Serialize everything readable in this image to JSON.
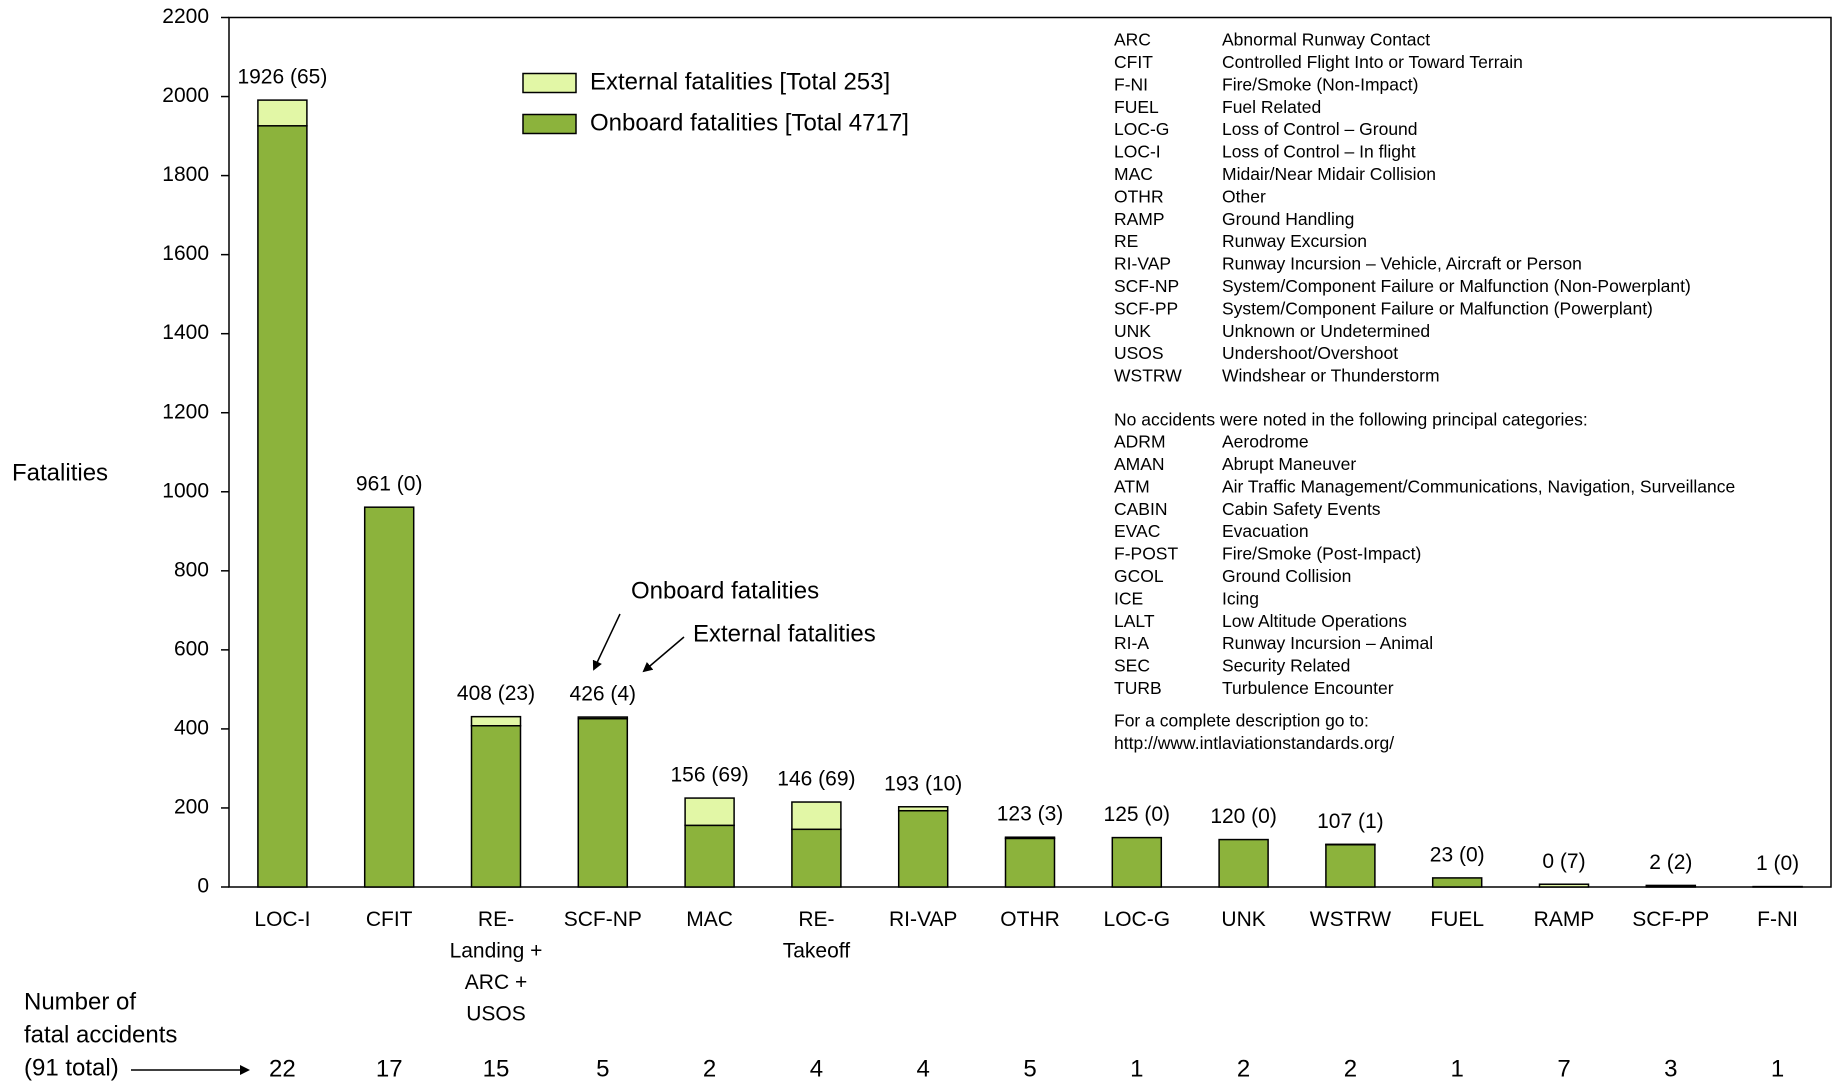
{
  "chart_data": {
    "type": "bar",
    "stacked": true,
    "ylabel": "Fatalities",
    "categories": [
      "LOC-I",
      "CFIT",
      "RE-\nLanding +\nARC +\nUSOS",
      "SCF-NP",
      "MAC",
      "RE-\nTakeoff",
      "RI-VAP",
      "OTHR",
      "LOC-G",
      "UNK",
      "WSTRW",
      "FUEL",
      "RAMP",
      "SCF-PP",
      "F-NI"
    ],
    "series": [
      {
        "name": "Onboard fatalities [Total 4717]",
        "color": "#8cb33c",
        "values": [
          1926,
          961,
          408,
          426,
          156,
          146,
          193,
          123,
          125,
          120,
          107,
          23,
          0,
          2,
          1
        ],
        "value_labels": [
          "1926 (65)",
          "961 (0)",
          "408 (23)",
          "426 (4)",
          "156 (69)",
          "146 (69)",
          "193 (10)",
          "123 (3)",
          "125 (0)",
          "120 (0)",
          "107 (1)",
          "23 (0)",
          "0 (7)",
          "2 (2)",
          "1 (0)"
        ]
      },
      {
        "name": "External fatalities [Total 253]",
        "color": "#e2f7a6",
        "values": [
          65,
          0,
          23,
          4,
          69,
          69,
          10,
          3,
          0,
          0,
          1,
          0,
          7,
          2,
          0
        ]
      }
    ],
    "ylim": [
      0,
      2200
    ],
    "yticks": [
      0,
      200,
      400,
      600,
      800,
      1000,
      1200,
      1400,
      1600,
      1800,
      2000,
      2200
    ],
    "grid": false,
    "annotations": [
      "Onboard fatalities",
      "External fatalities"
    ],
    "accidents": {
      "label": [
        "Number of",
        "fatal accidents",
        "(91 total)"
      ],
      "values": [
        22,
        17,
        15,
        5,
        2,
        4,
        4,
        5,
        1,
        2,
        2,
        1,
        7,
        3,
        1
      ]
    },
    "abbreviations": [
      [
        "ARC",
        "Abnormal Runway Contact"
      ],
      [
        "CFIT",
        "Controlled Flight Into or Toward Terrain"
      ],
      [
        "F-NI",
        "Fire/Smoke (Non-Impact)"
      ],
      [
        "FUEL",
        "Fuel Related"
      ],
      [
        "LOC-G",
        "Loss of Control – Ground"
      ],
      [
        "LOC-I",
        "Loss of Control – In flight"
      ],
      [
        "MAC",
        "Midair/Near Midair Collision"
      ],
      [
        "OTHR",
        "Other"
      ],
      [
        "RAMP",
        "Ground Handling"
      ],
      [
        "RE",
        "Runway Excursion"
      ],
      [
        "RI-VAP",
        "Runway Incursion – Vehicle, Aircraft or Person"
      ],
      [
        "SCF-NP",
        "System/Component Failure or  Malfunction (Non-Powerplant)"
      ],
      [
        "SCF-PP",
        "System/Component Failure or Malfunction  (Powerplant)"
      ],
      [
        "UNK",
        "Unknown or Undetermined"
      ],
      [
        "USOS",
        "Undershoot/Overshoot"
      ],
      [
        "WSTRW",
        "Windshear or Thunderstorm"
      ]
    ],
    "no_accidents_heading": "No accidents were noted in the following principal categories:",
    "no_accidents": [
      [
        "ADRM",
        "Aerodrome"
      ],
      [
        "AMAN",
        "Abrupt Maneuver"
      ],
      [
        "ATM",
        "Air Traffic Management/Communications, Navigation, Surveillance"
      ],
      [
        "CABIN",
        "Cabin Safety Events"
      ],
      [
        "EVAC",
        "Evacuation"
      ],
      [
        "F-POST",
        "Fire/Smoke (Post-Impact)"
      ],
      [
        "GCOL",
        "Ground Collision"
      ],
      [
        "ICE",
        "Icing"
      ],
      [
        "LALT",
        "Low Altitude Operations"
      ],
      [
        "RI-A",
        "Runway Incursion – Animal"
      ],
      [
        "SEC",
        "Security Related"
      ],
      [
        "TURB",
        "Turbulence Encounter"
      ]
    ],
    "footer": [
      "For a complete description go to:",
      "http://www.intlaviationstandards.org/"
    ]
  }
}
